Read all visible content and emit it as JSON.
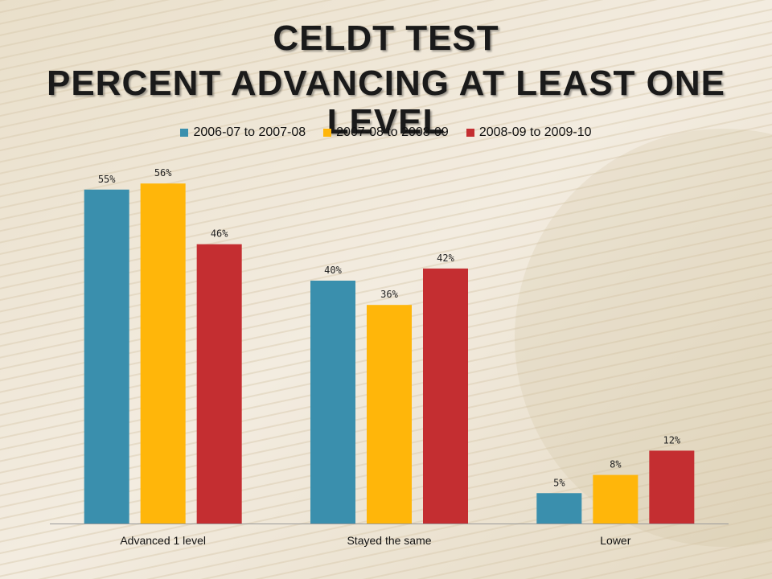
{
  "slide": {
    "title_line1": "CELDT TEST",
    "title_line2": "PERCENT ADVANCING AT LEAST ONE LEVEL"
  },
  "colors": {
    "series": [
      "#3a8fad",
      "#ffb60a",
      "#c42e31"
    ],
    "background": "#efe6d4"
  },
  "chart_data": {
    "type": "bar",
    "title": "CELDT TEST PERCENT ADVANCING AT LEAST ONE LEVEL",
    "categories": [
      "Advanced 1 level",
      "Stayed the same",
      "Lower"
    ],
    "series": [
      {
        "name": "2006-07 to 2007-08",
        "values": [
          55,
          40,
          5
        ],
        "labels": [
          "55%",
          "40%",
          "5%"
        ]
      },
      {
        "name": "2007-08 to 2008-09",
        "values": [
          56,
          36,
          8
        ],
        "labels": [
          "56%",
          "36%",
          "8%"
        ]
      },
      {
        "name": "2008-09 to 2009-10",
        "values": [
          46,
          42,
          12
        ],
        "labels": [
          "46%",
          "42%",
          "12%"
        ]
      }
    ],
    "xlabel": "",
    "ylabel": "",
    "ylim": [
      0,
      60
    ],
    "grid": false,
    "legend_position": "top"
  }
}
